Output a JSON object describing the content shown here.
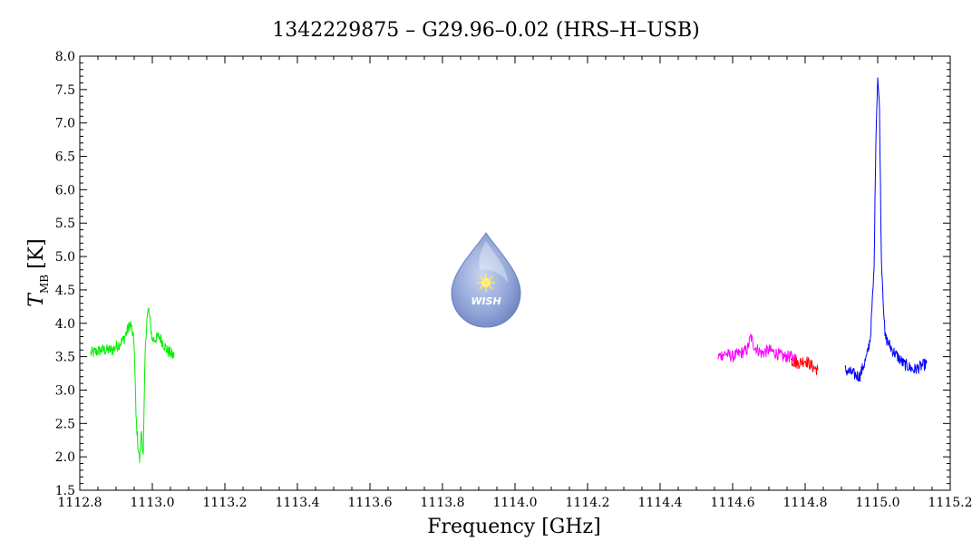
{
  "chart_data": {
    "type": "line",
    "title": "1342229875 – G29.96–0.02 (HRS–H–USB)",
    "xlabel": "Frequency [GHz]",
    "ylabel": {
      "main": "T",
      "sub": "MB",
      "unit": "[K]"
    },
    "xlim": [
      1112.8,
      1115.2
    ],
    "ylim": [
      1.5,
      8.0
    ],
    "xticks": [
      "1112.8",
      "1113.0",
      "1113.2",
      "1113.4",
      "1113.6",
      "1113.8",
      "1114.0",
      "1114.2",
      "1114.4",
      "1114.6",
      "1114.8",
      "1115.0",
      "1115.2"
    ],
    "yticks": [
      "1.5",
      "2.0",
      "2.5",
      "3.0",
      "3.5",
      "4.0",
      "4.5",
      "5.0",
      "5.5",
      "6.0",
      "6.5",
      "7.0",
      "7.5",
      "8.0"
    ],
    "grid": false,
    "series": [
      {
        "color": "#00ee00",
        "x": [
          1112.83,
          1112.86,
          1112.89,
          1112.92,
          1112.94,
          1112.95,
          1112.955,
          1112.96,
          1112.965,
          1112.97,
          1112.975,
          1112.98,
          1112.985,
          1112.99,
          1113.0,
          1113.02,
          1113.04,
          1113.06
        ],
        "y": [
          3.55,
          3.6,
          3.6,
          3.75,
          4.0,
          3.7,
          2.6,
          2.2,
          1.95,
          2.4,
          2.0,
          3.5,
          4.1,
          4.2,
          3.75,
          3.8,
          3.6,
          3.5
        ]
      },
      {
        "color": "#ff00ff",
        "x": [
          1114.56,
          1114.58,
          1114.6,
          1114.62,
          1114.64,
          1114.65,
          1114.66,
          1114.68,
          1114.7,
          1114.72,
          1114.74,
          1114.76,
          1114.78
        ],
        "y": [
          3.5,
          3.55,
          3.5,
          3.55,
          3.6,
          3.8,
          3.65,
          3.55,
          3.6,
          3.55,
          3.5,
          3.5,
          3.45
        ]
      },
      {
        "color": "#ff0000",
        "x": [
          1114.76,
          1114.78,
          1114.8,
          1114.82,
          1114.835
        ],
        "y": [
          3.45,
          3.4,
          3.45,
          3.35,
          3.3
        ]
      },
      {
        "color": "#0000ff",
        "x": [
          1114.91,
          1114.93,
          1114.95,
          1114.97,
          1114.98,
          1114.99,
          1114.995,
          1115.0,
          1115.005,
          1115.01,
          1115.02,
          1115.04,
          1115.07,
          1115.1,
          1115.135
        ],
        "y": [
          3.3,
          3.25,
          3.2,
          3.5,
          3.8,
          4.8,
          6.8,
          7.7,
          7.2,
          5.0,
          3.8,
          3.6,
          3.4,
          3.3,
          3.4
        ]
      }
    ]
  },
  "logo": {
    "text": "WISH"
  }
}
